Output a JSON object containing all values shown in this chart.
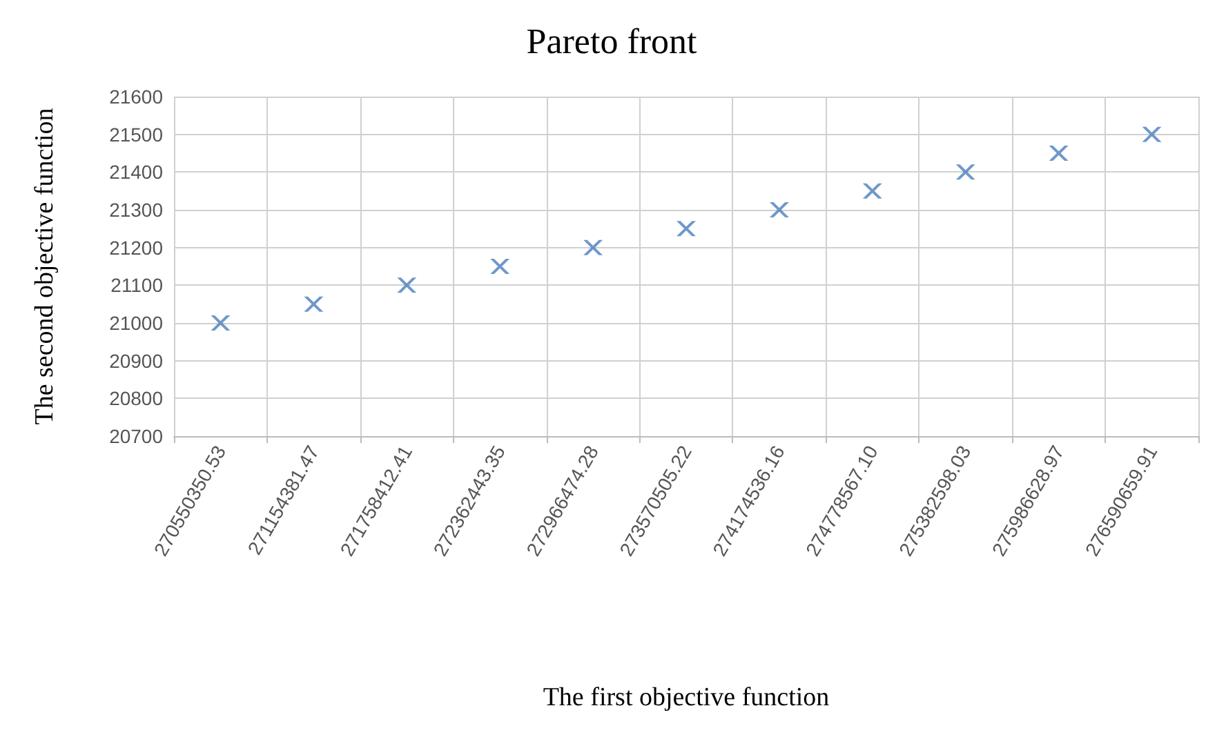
{
  "chart_data": {
    "type": "scatter",
    "title": "Pareto front",
    "xlabel": "The first objective function",
    "ylabel": "The second objective function",
    "categories": [
      "270550350.53",
      "271154381.47",
      "271758412.41",
      "272362443.35",
      "272966474.28",
      "273570505.22",
      "274174536.16",
      "274778567.10",
      "275382598.03",
      "275986628.97",
      "276590659.91"
    ],
    "series": [
      {
        "color": "#4a7ebb",
        "values": [
          21000,
          21050,
          21100,
          21150,
          21200,
          21250,
          21300,
          21350,
          21400,
          21450,
          21500
        ]
      }
    ],
    "ylim": [
      20700,
      21600
    ],
    "yticks": [
      20700,
      20800,
      20900,
      21000,
      21100,
      21200,
      21300,
      21400,
      21500,
      21600
    ],
    "grid": true,
    "marker": "cross"
  }
}
